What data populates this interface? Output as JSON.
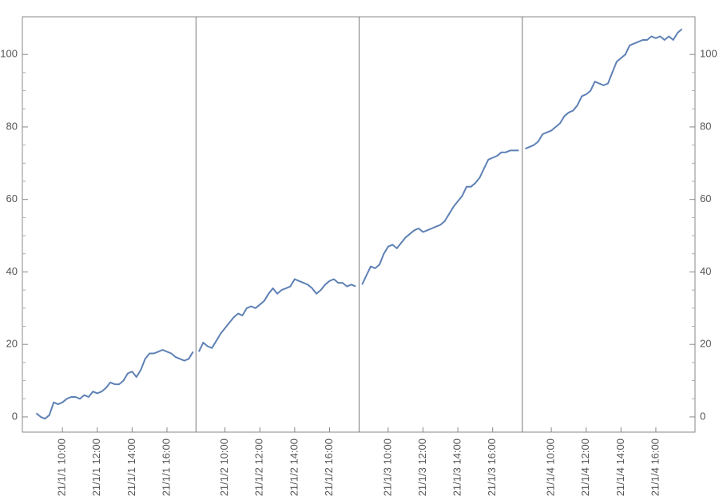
{
  "chart_data": {
    "type": "line",
    "color": "#5e81b5",
    "ylim": [
      -4.2,
      110.4
    ],
    "yticks": [
      0,
      20,
      40,
      60,
      80,
      100
    ],
    "panels": [
      {
        "xlim": [
          "21/1/1 07:42",
          "21/1/1 17:40"
        ],
        "xticks": [
          "21/1/1 10:00",
          "21/1/1 12:00",
          "21/1/1 14:00",
          "21/1/1 16:00"
        ],
        "x": [
          "21/1/1 08:30",
          "21/1/1 08:45",
          "21/1/1 09:00",
          "21/1/1 09:15",
          "21/1/1 09:30",
          "21/1/1 09:45",
          "21/1/1 10:00",
          "21/1/1 10:15",
          "21/1/1 10:30",
          "21/1/1 10:45",
          "21/1/1 11:00",
          "21/1/1 11:15",
          "21/1/1 11:30",
          "21/1/1 11:45",
          "21/1/1 12:00",
          "21/1/1 12:15",
          "21/1/1 12:30",
          "21/1/1 12:45",
          "21/1/1 13:00",
          "21/1/1 13:15",
          "21/1/1 13:30",
          "21/1/1 13:45",
          "21/1/1 14:00",
          "21/1/1 14:15",
          "21/1/1 14:30",
          "21/1/1 14:45",
          "21/1/1 15:00",
          "21/1/1 15:15",
          "21/1/1 15:30",
          "21/1/1 15:45",
          "21/1/1 16:00",
          "21/1/1 16:15",
          "21/1/1 16:30",
          "21/1/1 16:45",
          "21/1/1 17:00",
          "21/1/1 17:15",
          "21/1/1 17:30"
        ],
        "values": [
          1,
          0,
          -0.5,
          0.5,
          4,
          3.5,
          4,
          5,
          5.5,
          5.5,
          5,
          6,
          5.5,
          7,
          6.5,
          7,
          8,
          9.5,
          9,
          9,
          10,
          12,
          12.5,
          11,
          13,
          16,
          17.5,
          17.5,
          18,
          18.5,
          18,
          17.5,
          16.5,
          16,
          15.5,
          16,
          18
        ]
      },
      {
        "xlim": [
          "21/1/2 08:20",
          "21/1/2 17:42"
        ],
        "xticks": [
          "21/1/2 10:00",
          "21/1/2 12:00",
          "21/1/2 14:00",
          "21/1/2 16:00"
        ],
        "x": [
          "21/1/2 08:30",
          "21/1/2 08:45",
          "21/1/2 09:00",
          "21/1/2 09:15",
          "21/1/2 09:30",
          "21/1/2 09:45",
          "21/1/2 10:00",
          "21/1/2 10:15",
          "21/1/2 10:30",
          "21/1/2 10:45",
          "21/1/2 11:00",
          "21/1/2 11:15",
          "21/1/2 11:30",
          "21/1/2 11:45",
          "21/1/2 12:00",
          "21/1/2 12:15",
          "21/1/2 12:30",
          "21/1/2 12:45",
          "21/1/2 13:00",
          "21/1/2 13:15",
          "21/1/2 13:30",
          "21/1/2 13:45",
          "21/1/2 14:00",
          "21/1/2 14:15",
          "21/1/2 14:30",
          "21/1/2 14:45",
          "21/1/2 15:00",
          "21/1/2 15:15",
          "21/1/2 15:30",
          "21/1/2 15:45",
          "21/1/2 16:00",
          "21/1/2 16:15",
          "21/1/2 16:30",
          "21/1/2 16:45",
          "21/1/2 17:00",
          "21/1/2 17:15",
          "21/1/2 17:30"
        ],
        "values": [
          18,
          20.5,
          19.5,
          19,
          21,
          23,
          24.5,
          26,
          27.5,
          28.5,
          28,
          30,
          30.5,
          30,
          31,
          32,
          34,
          35.5,
          34,
          35,
          35.5,
          36,
          38,
          37.5,
          37,
          36.5,
          35.5,
          34,
          35,
          36.5,
          37.5,
          38,
          37,
          37,
          36,
          36.5,
          36
        ]
      },
      {
        "xlim": [
          "21/1/3 08:20",
          "21/1/3 17:42"
        ],
        "xticks": [
          "21/1/3 10:00",
          "21/1/3 12:00",
          "21/1/3 14:00",
          "21/1/3 16:00"
        ],
        "x": [
          "21/1/3 08:30",
          "21/1/3 08:45",
          "21/1/3 09:00",
          "21/1/3 09:15",
          "21/1/3 09:30",
          "21/1/3 09:45",
          "21/1/3 10:00",
          "21/1/3 10:15",
          "21/1/3 10:30",
          "21/1/3 10:45",
          "21/1/3 11:00",
          "21/1/3 11:15",
          "21/1/3 11:30",
          "21/1/3 11:45",
          "21/1/3 12:00",
          "21/1/3 12:15",
          "21/1/3 12:30",
          "21/1/3 12:45",
          "21/1/3 13:00",
          "21/1/3 13:15",
          "21/1/3 13:30",
          "21/1/3 13:45",
          "21/1/3 14:00",
          "21/1/3 14:15",
          "21/1/3 14:30",
          "21/1/3 14:45",
          "21/1/3 15:00",
          "21/1/3 15:15",
          "21/1/3 15:30",
          "21/1/3 15:45",
          "21/1/3 16:00",
          "21/1/3 16:15",
          "21/1/3 16:30",
          "21/1/3 16:45",
          "21/1/3 17:00",
          "21/1/3 17:15",
          "21/1/3 17:30"
        ],
        "values": [
          36.5,
          39,
          41.5,
          41,
          42,
          45,
          47,
          47.5,
          46.5,
          48,
          49.5,
          50.5,
          51.5,
          52,
          51,
          51.5,
          52,
          52.5,
          53,
          54,
          56,
          58,
          59.5,
          61,
          63.5,
          63.5,
          64.5,
          66,
          68.5,
          71,
          71.5,
          72,
          73,
          73,
          73.5,
          73.5,
          73.5
        ]
      },
      {
        "xlim": [
          "21/1/4 08:20",
          "21/1/4 18:15"
        ],
        "xticks": [
          "21/1/4 10:00",
          "21/1/4 12:00",
          "21/1/4 14:00",
          "21/1/4 16:00"
        ],
        "x": [
          "21/1/4 08:30",
          "21/1/4 08:45",
          "21/1/4 09:00",
          "21/1/4 09:15",
          "21/1/4 09:30",
          "21/1/4 09:45",
          "21/1/4 10:00",
          "21/1/4 10:15",
          "21/1/4 10:30",
          "21/1/4 10:45",
          "21/1/4 11:00",
          "21/1/4 11:15",
          "21/1/4 11:30",
          "21/1/4 11:45",
          "21/1/4 12:00",
          "21/1/4 12:15",
          "21/1/4 12:30",
          "21/1/4 12:45",
          "21/1/4 13:00",
          "21/1/4 13:15",
          "21/1/4 13:30",
          "21/1/4 13:45",
          "21/1/4 14:00",
          "21/1/4 14:15",
          "21/1/4 14:30",
          "21/1/4 14:45",
          "21/1/4 15:00",
          "21/1/4 15:15",
          "21/1/4 15:30",
          "21/1/4 15:45",
          "21/1/4 16:00",
          "21/1/4 16:15",
          "21/1/4 16:30",
          "21/1/4 16:45",
          "21/1/4 17:00",
          "21/1/4 17:15",
          "21/1/4 17:30"
        ],
        "values": [
          74,
          74.5,
          75,
          76,
          78,
          78.5,
          79,
          80,
          81,
          83,
          84,
          84.5,
          86,
          88.5,
          89,
          90,
          92.5,
          92,
          91.5,
          92,
          95,
          98,
          99,
          100,
          102.5,
          103,
          103.5,
          104,
          104,
          105,
          104.5,
          105,
          104,
          105,
          104,
          106,
          107
        ]
      }
    ]
  }
}
